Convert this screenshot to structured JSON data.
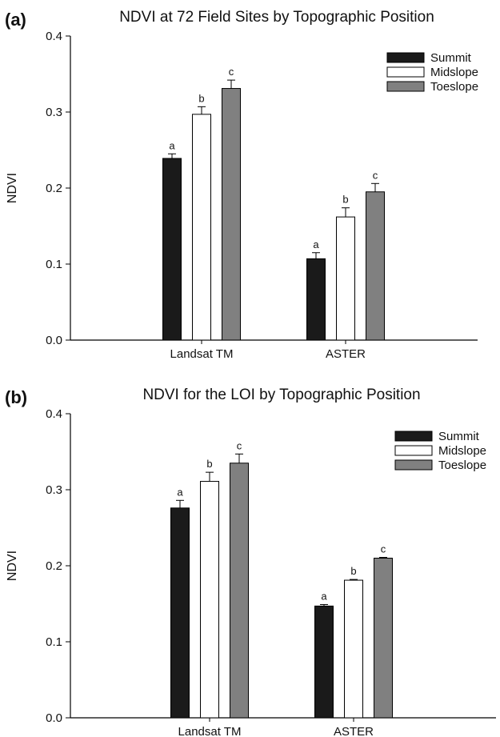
{
  "chart_data": [
    {
      "panel_label": "(a)",
      "type": "bar",
      "title": "NDVI at 72 Field Sites by Topographic Position",
      "xlabel": "",
      "ylabel": "NDVI",
      "ylim": [
        0,
        0.4
      ],
      "yticks": [
        "0.0",
        "0.1",
        "0.2",
        "0.3",
        "0.4"
      ],
      "categories": [
        "Landsat TM",
        "ASTER"
      ],
      "legend_position": "top-right",
      "grid": false,
      "series": [
        {
          "name": "Summit",
          "color": "#1a1a1a",
          "values": [
            0.239,
            0.107
          ],
          "errors": [
            0.006,
            0.008
          ],
          "letters": [
            "a",
            "a"
          ]
        },
        {
          "name": "Midslope",
          "color": "#ffffff",
          "values": [
            0.297,
            0.162
          ],
          "errors": [
            0.01,
            0.012
          ],
          "letters": [
            "b",
            "b"
          ]
        },
        {
          "name": "Toeslope",
          "color": "#808080",
          "values": [
            0.331,
            0.195
          ],
          "errors": [
            0.011,
            0.011
          ],
          "letters": [
            "c",
            "c"
          ]
        }
      ]
    },
    {
      "panel_label": "(b)",
      "type": "bar",
      "title": "NDVI for the LOI by Topographic Position",
      "xlabel": "",
      "ylabel": "NDVI",
      "ylim": [
        0,
        0.4
      ],
      "yticks": [
        "0.0",
        "0.1",
        "0.2",
        "0.3",
        "0.4"
      ],
      "categories": [
        "Landsat TM",
        "ASTER"
      ],
      "legend_position": "top-right",
      "grid": false,
      "series": [
        {
          "name": "Summit",
          "color": "#1a1a1a",
          "values": [
            0.276,
            0.147
          ],
          "errors": [
            0.01,
            0.002
          ],
          "letters": [
            "a",
            "a"
          ]
        },
        {
          "name": "Midslope",
          "color": "#ffffff",
          "values": [
            0.311,
            0.181
          ],
          "errors": [
            0.012,
            0.001
          ],
          "letters": [
            "b",
            "b"
          ]
        },
        {
          "name": "Toeslope",
          "color": "#808080",
          "values": [
            0.335,
            0.21
          ],
          "errors": [
            0.012,
            0.001
          ],
          "letters": [
            "c",
            "c"
          ]
        }
      ]
    }
  ]
}
